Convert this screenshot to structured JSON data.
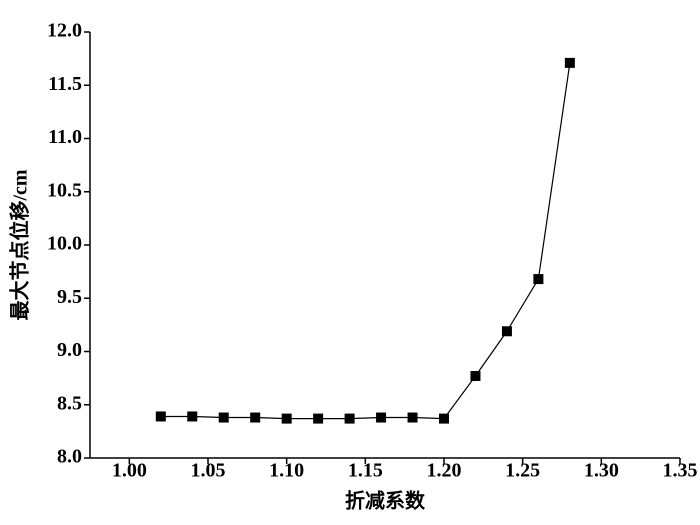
{
  "chart_data": {
    "type": "line",
    "xlabel": "折减系数",
    "ylabel": "最大节点位移/cm",
    "x": [
      1.02,
      1.04,
      1.06,
      1.08,
      1.1,
      1.12,
      1.14,
      1.16,
      1.18,
      1.2,
      1.22,
      1.24,
      1.26,
      1.28
    ],
    "series": [
      {
        "color": "#000000",
        "values": [
          8.39,
          8.39,
          8.38,
          8.38,
          8.37,
          8.37,
          8.37,
          8.38,
          8.38,
          8.37,
          8.77,
          9.19,
          9.68,
          11.71
        ]
      }
    ],
    "xlim": [
      0.975,
      1.35
    ],
    "xticks": [
      {
        "value": 1.0,
        "label": "1.00"
      },
      {
        "value": 1.05,
        "label": "1.05"
      },
      {
        "value": 1.1,
        "label": "1.10"
      },
      {
        "value": 1.15,
        "label": "1.15"
      },
      {
        "value": 1.2,
        "label": "1.20"
      },
      {
        "value": 1.25,
        "label": "1.25"
      },
      {
        "value": 1.3,
        "label": "1.30"
      },
      {
        "value": 1.35,
        "label": "1.35"
      }
    ],
    "ylim": [
      8.0,
      12.0
    ],
    "yticks": [
      {
        "value": 8.0,
        "label": "8.0"
      },
      {
        "value": 8.5,
        "label": "8.5"
      },
      {
        "value": 9.0,
        "label": "9.0"
      },
      {
        "value": 9.5,
        "label": "9.5"
      },
      {
        "value": 10.0,
        "label": "10.0"
      },
      {
        "value": 10.5,
        "label": "10.5"
      },
      {
        "value": 11.0,
        "label": "11.0"
      },
      {
        "value": 11.5,
        "label": "11.5"
      },
      {
        "value": 12.0,
        "label": "12.0"
      }
    ]
  }
}
